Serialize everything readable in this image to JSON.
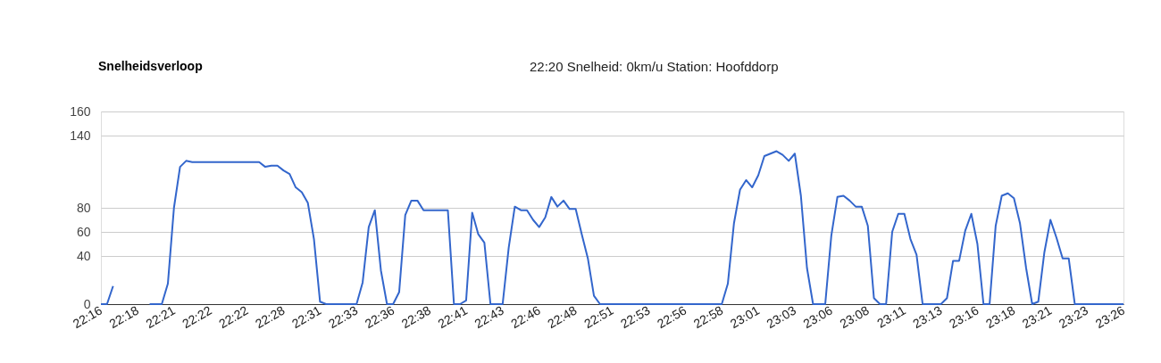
{
  "chart_data": {
    "type": "line",
    "title": "Snelheidsverloop",
    "annotations": [
      "22:20 Snelheid: 0km/u Station: Hoofddorp"
    ],
    "categories": [
      "22:16",
      null,
      null,
      null,
      null,
      null,
      "22:18",
      null,
      null,
      null,
      null,
      null,
      "22:21",
      null,
      null,
      null,
      null,
      null,
      "22:22",
      null,
      null,
      null,
      null,
      null,
      "22:22",
      null,
      null,
      null,
      null,
      null,
      "22:28",
      null,
      null,
      null,
      null,
      null,
      "22:31",
      null,
      null,
      null,
      null,
      null,
      "22:33",
      null,
      null,
      null,
      null,
      null,
      "22:36",
      null,
      null,
      null,
      null,
      null,
      "22:38",
      null,
      null,
      null,
      null,
      null,
      "22:41",
      null,
      null,
      null,
      null,
      null,
      "22:43",
      null,
      null,
      null,
      null,
      null,
      "22:46",
      null,
      null,
      null,
      null,
      null,
      "22:48",
      null,
      null,
      null,
      null,
      null,
      "22:51",
      null,
      null,
      null,
      null,
      null,
      "22:53",
      null,
      null,
      null,
      null,
      null,
      "22:56",
      null,
      null,
      null,
      null,
      null,
      "22:58",
      null,
      null,
      null,
      null,
      null,
      "23:01",
      null,
      null,
      null,
      null,
      null,
      "23:03",
      null,
      null,
      null,
      null,
      null,
      "23:06",
      null,
      null,
      null,
      null,
      null,
      "23:08",
      null,
      null,
      null,
      null,
      null,
      "23:11",
      null,
      null,
      null,
      null,
      null,
      "23:13",
      null,
      null,
      null,
      null,
      null,
      "23:16",
      null,
      null,
      null,
      null,
      null,
      "23:18",
      null,
      null,
      null,
      null,
      null,
      "23:21",
      null,
      null,
      null,
      null,
      null,
      "23:23",
      null,
      null,
      null,
      null,
      null,
      "23:26"
    ],
    "series": [
      {
        "color": "#3366cc",
        "values": [
          0,
          0,
          15,
          null,
          null,
          null,
          null,
          null,
          0,
          0,
          0,
          17,
          80,
          114,
          119,
          118,
          118,
          118,
          118,
          118,
          118,
          118,
          118,
          118,
          118,
          118,
          118,
          114,
          115,
          115,
          111,
          108,
          97,
          93,
          84,
          54,
          2,
          0,
          0,
          0,
          0,
          0,
          0,
          18,
          64,
          78,
          28,
          0,
          0,
          10,
          74,
          86,
          86,
          78,
          78,
          78,
          78,
          78,
          0,
          0,
          3,
          76,
          58,
          51,
          0,
          0,
          0,
          47,
          81,
          78,
          78,
          70,
          64,
          72,
          89,
          81,
          86,
          79,
          79,
          58,
          38,
          7,
          0,
          0,
          0,
          0,
          0,
          0,
          0,
          0,
          0,
          0,
          0,
          0,
          0,
          0,
          0,
          0,
          0,
          0,
          0,
          0,
          0,
          17,
          67,
          95,
          103,
          97,
          107,
          123,
          125,
          127,
          124,
          119,
          125,
          90,
          30,
          0,
          0,
          0,
          57,
          89,
          90,
          86,
          81,
          81,
          65,
          5,
          0,
          0,
          60,
          75,
          75,
          54,
          41,
          0,
          0,
          0,
          0,
          5,
          36,
          36,
          61,
          75,
          50,
          0,
          0,
          65,
          90,
          92,
          88,
          67,
          30,
          0,
          2,
          43,
          70,
          55,
          38,
          38,
          0,
          0,
          0,
          0,
          0,
          0,
          0,
          0,
          0
        ]
      }
    ],
    "ylim": [
      0,
      160
    ],
    "yticks": [
      0,
      40,
      60,
      80,
      140,
      160
    ],
    "grid": "y",
    "marker": "none",
    "line_style": "solid"
  }
}
